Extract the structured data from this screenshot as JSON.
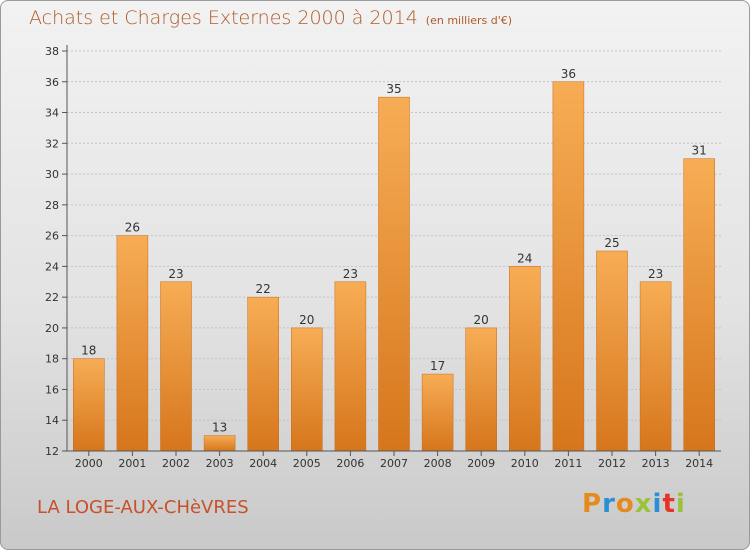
{
  "title": "Achats et Charges Externes 2000 à 2014",
  "unit": "(en milliers d'€)",
  "place": "LA LOGE-AUX-CHèVRES",
  "logo": "Proxiti",
  "colors": {
    "bar_light": "#f5a84e",
    "bar_dark": "#d97b22",
    "title": "#b05a28",
    "place": "#c8502a"
  },
  "chart_data": {
    "type": "bar",
    "categories": [
      "2000",
      "2001",
      "2002",
      "2003",
      "2004",
      "2005",
      "2006",
      "2007",
      "2008",
      "2009",
      "2010",
      "2011",
      "2012",
      "2013",
      "2014"
    ],
    "values": [
      18,
      26,
      23,
      13,
      22,
      20,
      23,
      35,
      17,
      20,
      24,
      36,
      25,
      23,
      31
    ],
    "ylim": [
      12,
      38
    ],
    "yticks": [
      12,
      14,
      16,
      18,
      20,
      22,
      24,
      26,
      28,
      30,
      32,
      34,
      36,
      38
    ],
    "grid": true
  }
}
